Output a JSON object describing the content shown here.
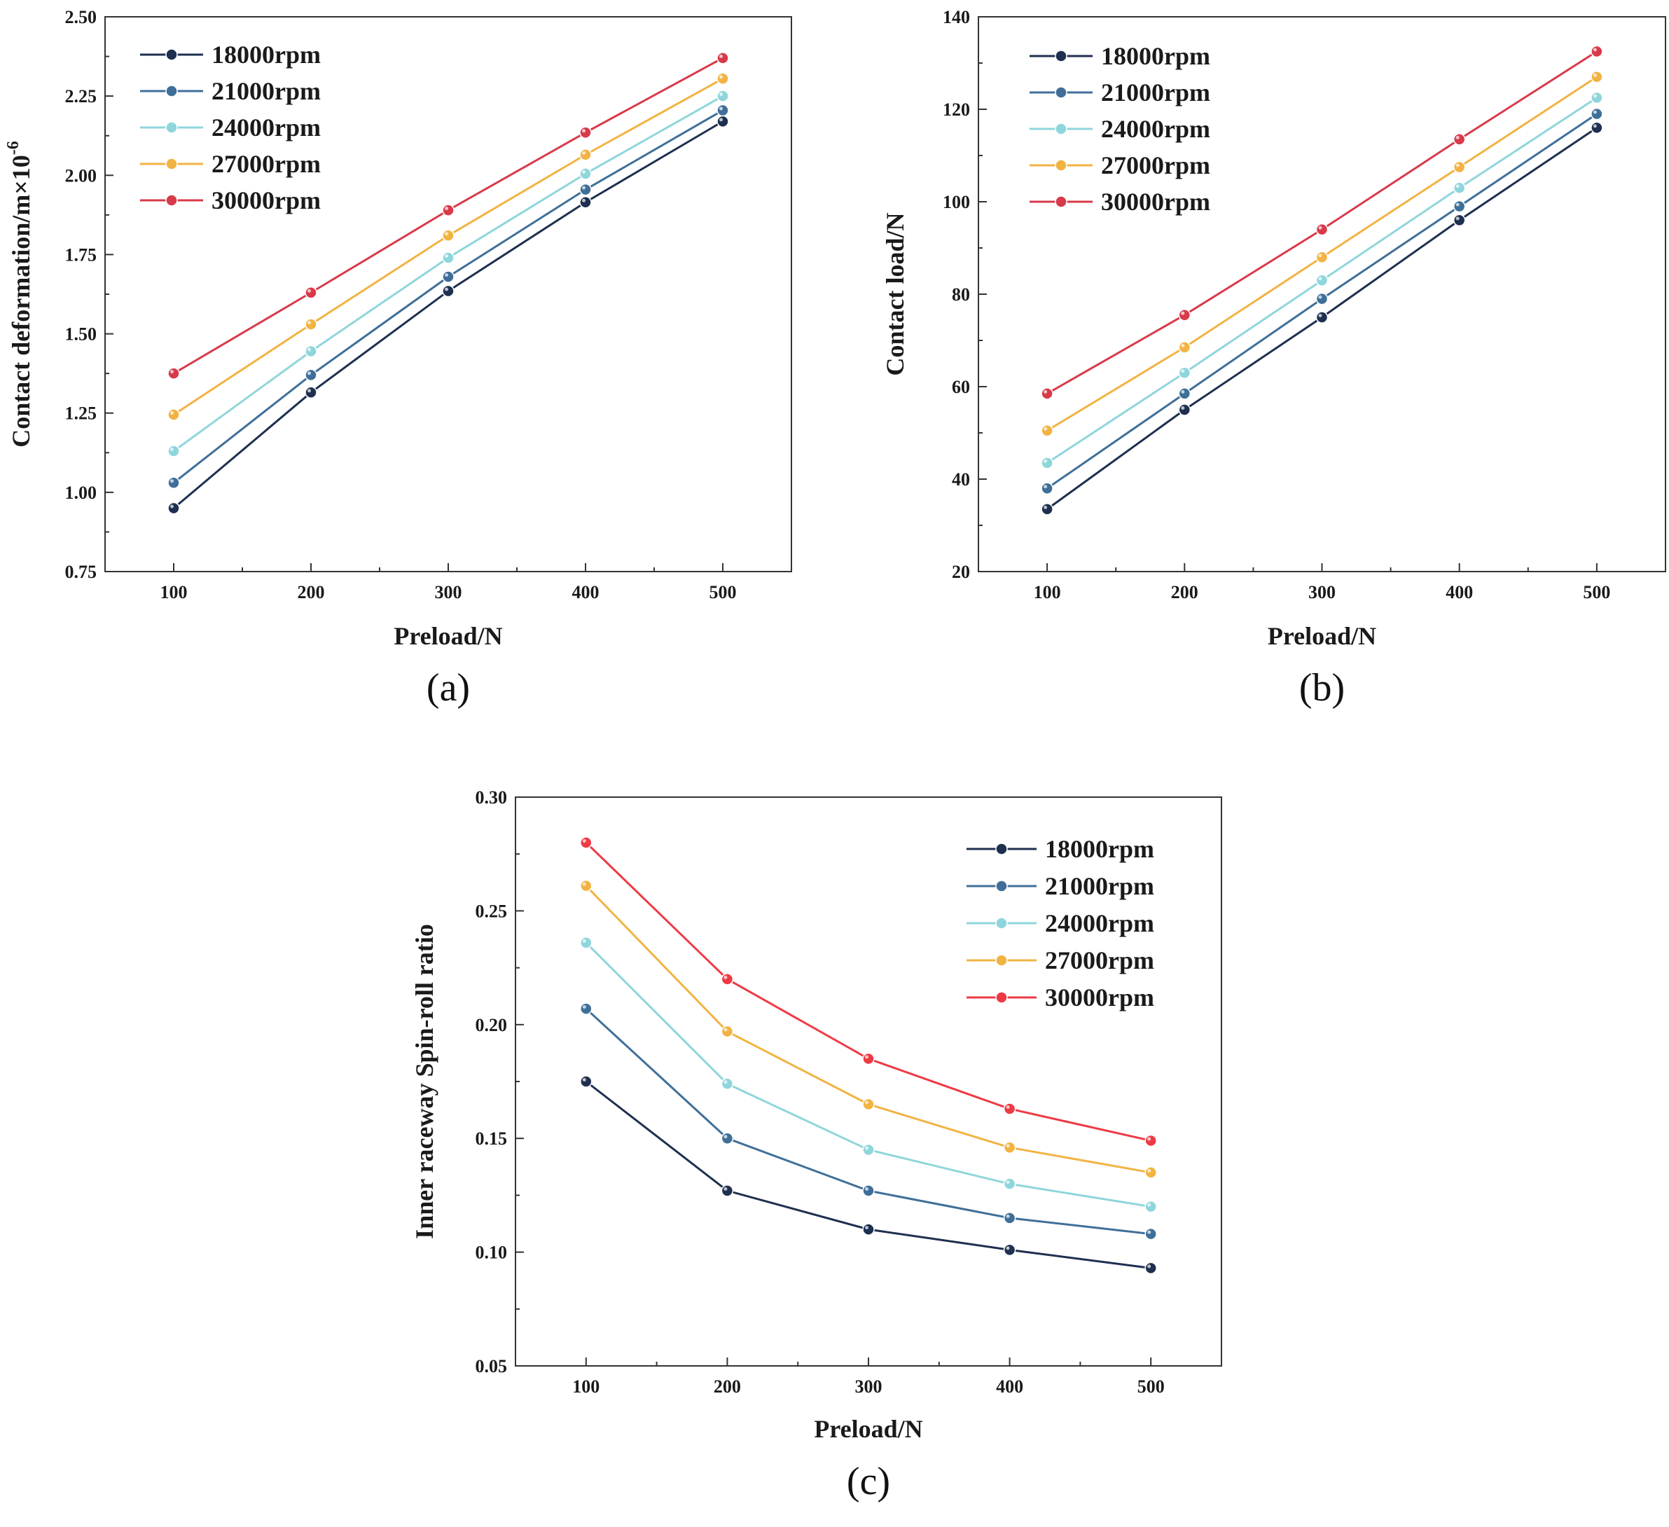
{
  "chart_data": [
    {
      "id": "a",
      "type": "line",
      "panel_label": "(a)",
      "xlabel": "Preload/N",
      "ylabel": "Contact deformation/m×10",
      "ylabel_sup": "-6",
      "x": [
        100,
        200,
        300,
        400,
        500
      ],
      "xticks": [
        "100",
        "200",
        "300",
        "400",
        "500"
      ],
      "xlim": [
        50,
        550
      ],
      "ylim": [
        0.75,
        2.5
      ],
      "yticks": [
        "0.75",
        "1.00",
        "1.25",
        "1.50",
        "1.75",
        "2.00",
        "2.25",
        "2.50"
      ],
      "grid": false,
      "legend_position": "top-left",
      "series": [
        {
          "name": "18000rpm",
          "color": "#1e2f4f",
          "values": [
            0.95,
            1.315,
            1.635,
            1.915,
            2.17
          ]
        },
        {
          "name": "21000rpm",
          "color": "#3f6f98",
          "values": [
            1.03,
            1.37,
            1.68,
            1.955,
            2.205
          ]
        },
        {
          "name": "24000rpm",
          "color": "#8fd6dc",
          "values": [
            1.13,
            1.445,
            1.74,
            2.005,
            2.25
          ]
        },
        {
          "name": "27000rpm",
          "color": "#f2b343",
          "values": [
            1.245,
            1.53,
            1.81,
            2.065,
            2.305
          ]
        },
        {
          "name": "30000rpm",
          "color": "#d83a4a",
          "values": [
            1.375,
            1.63,
            1.89,
            2.135,
            2.37
          ]
        }
      ]
    },
    {
      "id": "b",
      "type": "line",
      "panel_label": "(b)",
      "xlabel": "Preload/N",
      "ylabel": "Contact load/N",
      "ylabel_sup": "",
      "x": [
        100,
        200,
        300,
        400,
        500
      ],
      "xticks": [
        "100",
        "200",
        "300",
        "400",
        "500"
      ],
      "xlim": [
        50,
        550
      ],
      "ylim": [
        20,
        140
      ],
      "yticks": [
        "20",
        "40",
        "60",
        "80",
        "100",
        "120",
        "140"
      ],
      "grid": false,
      "legend_position": "top-left",
      "series": [
        {
          "name": "18000rpm",
          "color": "#1e2f4f",
          "values": [
            33.5,
            55,
            75,
            96,
            116
          ]
        },
        {
          "name": "21000rpm",
          "color": "#3f6f98",
          "values": [
            38,
            58.5,
            79,
            99,
            119
          ]
        },
        {
          "name": "24000rpm",
          "color": "#8fd6dc",
          "values": [
            43.5,
            63,
            83,
            103,
            122.5
          ]
        },
        {
          "name": "27000rpm",
          "color": "#f2b343",
          "values": [
            50.5,
            68.5,
            88,
            107.5,
            127
          ]
        },
        {
          "name": "30000rpm",
          "color": "#d83a4a",
          "values": [
            58.5,
            75.5,
            94,
            113.5,
            132.5
          ]
        }
      ]
    },
    {
      "id": "c",
      "type": "line",
      "panel_label": "(c)",
      "xlabel": "Preload/N",
      "ylabel": "Inner raceway Spin-roll ratio",
      "ylabel_sup": "",
      "x": [
        100,
        200,
        300,
        400,
        500
      ],
      "xticks": [
        "100",
        "200",
        "300",
        "400",
        "500"
      ],
      "xlim": [
        50,
        550
      ],
      "ylim": [
        0.05,
        0.3
      ],
      "yticks": [
        "0.05",
        "0.10",
        "0.15",
        "0.20",
        "0.25",
        "0.30"
      ],
      "grid": false,
      "legend_position": "top-right",
      "series": [
        {
          "name": "18000rpm",
          "color": "#1e2f4f",
          "values": [
            0.175,
            0.127,
            0.11,
            0.101,
            0.093
          ]
        },
        {
          "name": "21000rpm",
          "color": "#3f6f98",
          "values": [
            0.207,
            0.15,
            0.127,
            0.115,
            0.108
          ]
        },
        {
          "name": "24000rpm",
          "color": "#8fd6dc",
          "values": [
            0.236,
            0.174,
            0.145,
            0.13,
            0.12
          ]
        },
        {
          "name": "27000rpm",
          "color": "#f2b343",
          "values": [
            0.261,
            0.197,
            0.165,
            0.146,
            0.135
          ]
        },
        {
          "name": "30000rpm",
          "color": "#ee3a45",
          "values": [
            0.28,
            0.22,
            0.185,
            0.163,
            0.149
          ]
        }
      ]
    }
  ]
}
